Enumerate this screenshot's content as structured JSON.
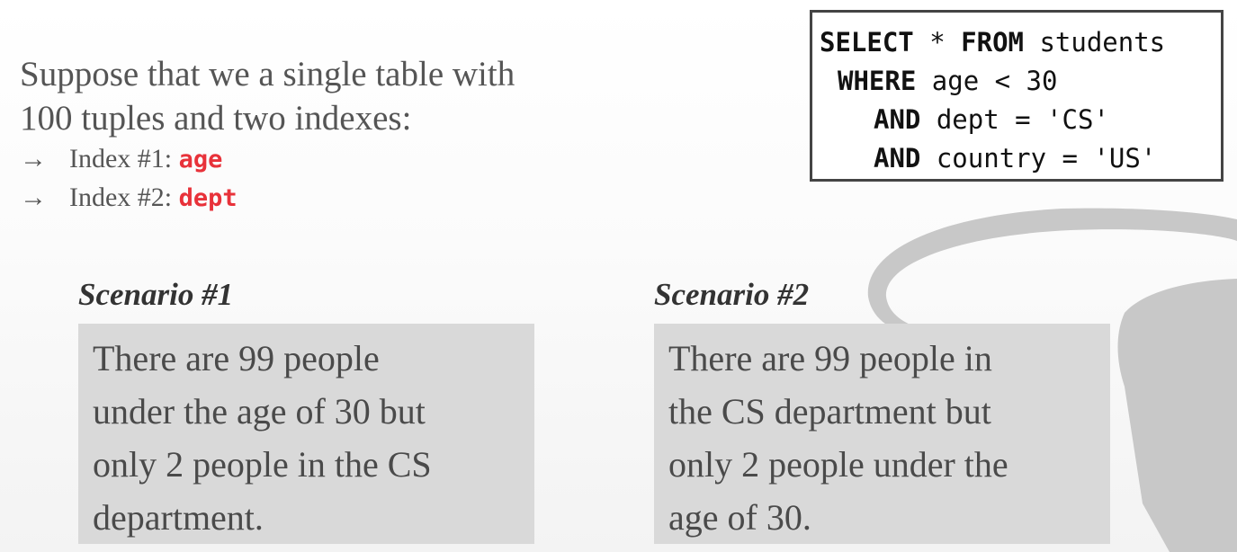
{
  "intro": {
    "line1": "Suppose that we a single table with",
    "line2": "100 tuples and two indexes:",
    "bullets": [
      {
        "arrow": "→",
        "label": "Index #1: ",
        "key": "age"
      },
      {
        "arrow": "→",
        "label": "Index #2: ",
        "key": "dept"
      }
    ]
  },
  "sql": {
    "l1_kw1": "SELECT",
    "l1_mid": " * ",
    "l1_kw2": "FROM",
    "l1_rest": " students",
    "l2_kw": "WHERE",
    "l2_rest": " age < 30",
    "l3_kw": "AND",
    "l3_rest": " dept = 'CS'",
    "l4_kw": "AND",
    "l4_rest": " country = 'US'"
  },
  "scenario1": {
    "title": "Scenario #1",
    "lines": [
      "There are 99 people",
      "under the age of 30 but",
      "only 2 people in the CS",
      "department."
    ]
  },
  "scenario2": {
    "title": "Scenario #2",
    "lines": [
      "There are 99 people in",
      "the CS department but",
      "only 2 people under the",
      "age of 30."
    ]
  },
  "colors": {
    "highlight": "#e8323a",
    "scenario_bg": "#d9d9d9",
    "db_shape": "#c8c8c8"
  }
}
